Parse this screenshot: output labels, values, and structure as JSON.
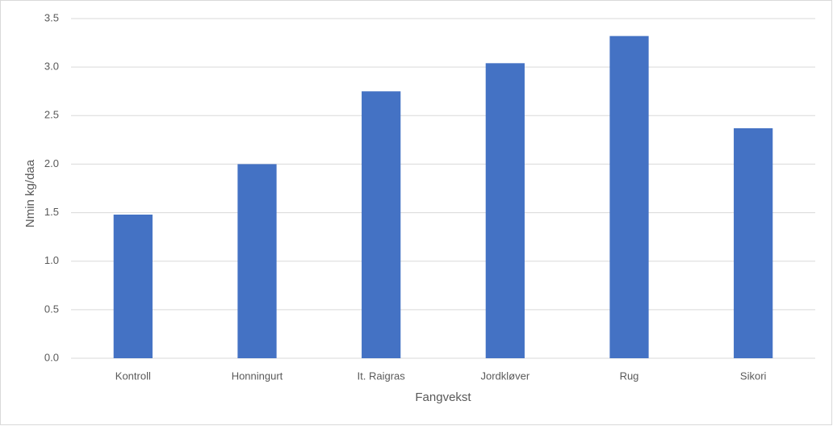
{
  "chart_data": {
    "type": "bar",
    "x_label": "Fangvekst",
    "y_label": "Nmin kg/daa",
    "categories": [
      "Kontroll",
      "Honningurt",
      "It. Raigras",
      "Jordkløver",
      "Rug",
      "Sikori"
    ],
    "values": [
      1.48,
      2.0,
      2.75,
      3.04,
      3.32,
      2.37
    ],
    "color": "#4472c4",
    "ylim": [
      0,
      3.5
    ],
    "yticks": [
      {
        "value": 0,
        "label": "0.0"
      },
      0.5,
      {
        "value": 1,
        "label": "1.0"
      },
      1.5,
      {
        "value": 2,
        "label": "2.0"
      },
      2.5,
      {
        "value": 3,
        "label": "3.0"
      },
      3.5
    ],
    "grid": true
  }
}
